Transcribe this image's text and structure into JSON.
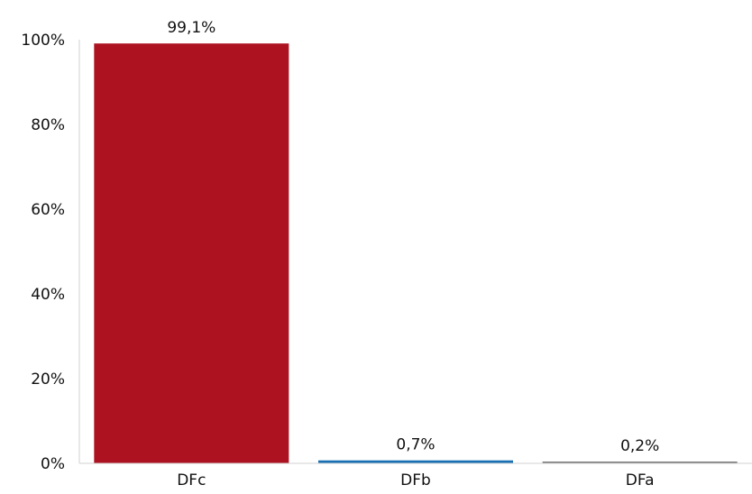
{
  "chart_data": {
    "type": "bar",
    "categories": [
      "DFc",
      "DFb",
      "DFa"
    ],
    "values": [
      99.1,
      0.7,
      0.2
    ],
    "data_labels": [
      "99,1%",
      "0,7%",
      "0,2%"
    ],
    "colors": [
      "#ad1220",
      "#1a6fb3",
      "#7a7a7a"
    ],
    "ylim": [
      0,
      100
    ],
    "yticks": [
      0,
      20,
      40,
      60,
      80,
      100
    ],
    "ytick_labels": [
      "0%",
      "20%",
      "40%",
      "60%",
      "80%",
      "100%"
    ],
    "title": "",
    "xlabel": "",
    "ylabel": "",
    "grid": false,
    "legend": false
  }
}
